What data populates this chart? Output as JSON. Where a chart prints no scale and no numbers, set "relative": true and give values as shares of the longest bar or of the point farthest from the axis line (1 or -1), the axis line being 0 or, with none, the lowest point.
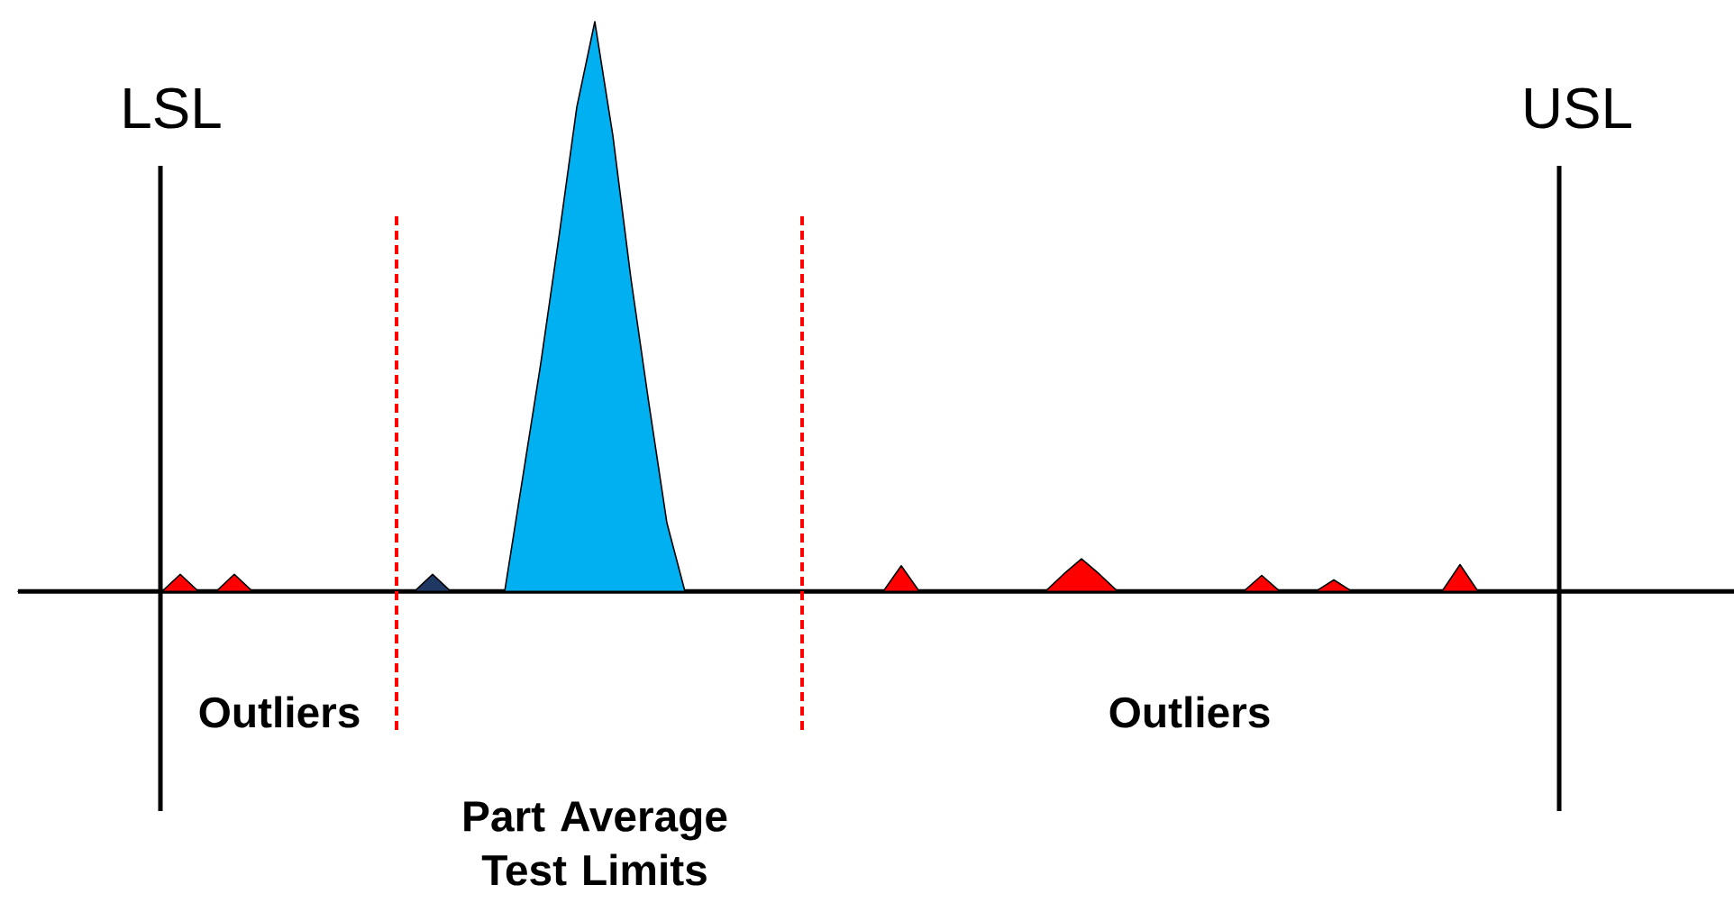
{
  "chart_data": {
    "type": "area",
    "relative": true,
    "categories": [
      null,
      null,
      null,
      null,
      null,
      null,
      null,
      null,
      null,
      null,
      null,
      null,
      null,
      null,
      null,
      null,
      null,
      null,
      null,
      null,
      null,
      null,
      null,
      null,
      null,
      null,
      null,
      null,
      null,
      null,
      null,
      null,
      null,
      null,
      null,
      null,
      null,
      null,
      null,
      null,
      null,
      null,
      null,
      null,
      null,
      null,
      null,
      null,
      null,
      null,
      null,
      null,
      null,
      null,
      null,
      null,
      null,
      null,
      null,
      null,
      null,
      null,
      null,
      null,
      null,
      null,
      null,
      null,
      null,
      null,
      null,
      null,
      null,
      null,
      null,
      null,
      null,
      null,
      null,
      null,
      null,
      null,
      null,
      null,
      null,
      null,
      null,
      null,
      null,
      null,
      null,
      null,
      null,
      null,
      null,
      null
    ],
    "series": [
      {
        "color": "#ff0000",
        "values": [
          0,
          0,
          0,
          0,
          0,
          0,
          0,
          0,
          0,
          0.03,
          0,
          0,
          0.03,
          0,
          0,
          0,
          0,
          0,
          0,
          0,
          0,
          0,
          0,
          0,
          0,
          0,
          0,
          0,
          0,
          0,
          0,
          0,
          0,
          0,
          0,
          0,
          0,
          0,
          0,
          0,
          0,
          0,
          0,
          0,
          0,
          0,
          0,
          0,
          0,
          0.045,
          0,
          0,
          0,
          0,
          0,
          0,
          0,
          0,
          0.03,
          0.057,
          0.03,
          0,
          0,
          0,
          0,
          0,
          0,
          0,
          0,
          0.028,
          0,
          0,
          0,
          0.02,
          0,
          0,
          0,
          0,
          0,
          0,
          0.047,
          0,
          0,
          0,
          0,
          0,
          0,
          0,
          0,
          0,
          0,
          0,
          0,
          0,
          0,
          0
        ]
      },
      {
        "color": "#00b0f0",
        "values": [
          null,
          null,
          null,
          null,
          null,
          null,
          null,
          null,
          null,
          null,
          null,
          null,
          null,
          null,
          null,
          null,
          null,
          null,
          null,
          null,
          null,
          null,
          null,
          null,
          null,
          null,
          null,
          0,
          0.2,
          0.4,
          0.62,
          0.85,
          1,
          0.8,
          0.55,
          0.33,
          0.12,
          0,
          null,
          null,
          null,
          null,
          null,
          null,
          null,
          null,
          null,
          null,
          null,
          null,
          null,
          null,
          null,
          null,
          null,
          null,
          null,
          null,
          null,
          null,
          null,
          null,
          null,
          null,
          null,
          null,
          null,
          null,
          null,
          null,
          null,
          null,
          null,
          null,
          null,
          null,
          null,
          null,
          null,
          null,
          null,
          null,
          null,
          null,
          null,
          null,
          null,
          null,
          null,
          null,
          null,
          null,
          null,
          null,
          null,
          null
        ]
      },
      {
        "color": "#1f3864",
        "values": [
          null,
          null,
          null,
          null,
          null,
          null,
          null,
          null,
          null,
          null,
          null,
          null,
          null,
          null,
          null,
          null,
          null,
          null,
          null,
          null,
          null,
          null,
          0,
          0.03,
          0,
          null,
          null,
          null,
          null,
          null,
          null,
          null,
          null,
          null,
          null,
          null,
          null,
          null,
          null,
          null,
          null,
          null,
          null,
          null,
          null,
          null,
          null,
          null,
          null,
          null,
          null,
          null,
          null,
          null,
          null,
          null,
          null,
          null,
          null,
          null,
          null,
          null,
          null,
          null,
          null,
          null,
          null,
          null,
          null,
          null,
          null,
          null,
          null,
          null,
          null,
          null,
          null,
          null,
          null,
          null,
          null,
          null,
          null,
          null,
          null,
          null,
          null,
          null,
          null,
          null,
          null,
          null,
          null,
          null,
          null,
          null
        ]
      }
    ],
    "annotations": [
      "LSL",
      "USL",
      "Outliers",
      "Outliers",
      "Part Average Test Limits"
    ]
  }
}
